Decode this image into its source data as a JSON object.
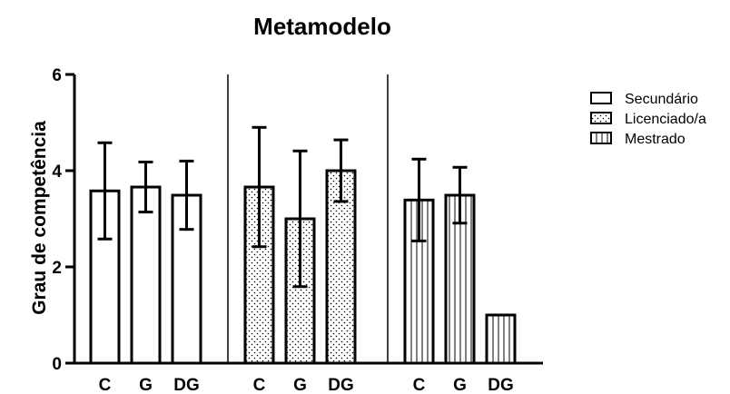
{
  "chart_data": {
    "type": "bar",
    "title": "Metamodelo",
    "ylabel": "Grau de competência",
    "xlabel": "",
    "ylim": [
      0,
      6
    ],
    "yticks": [
      0,
      2,
      4,
      6
    ],
    "categories": [
      "C",
      "G",
      "DG"
    ],
    "legend_position": "right",
    "grid": false,
    "series": [
      {
        "name": "Secundário",
        "pattern": "plain",
        "values": [
          3.58,
          3.66,
          3.49
        ],
        "errors": [
          1.0,
          0.52,
          0.71
        ]
      },
      {
        "name": "Licenciado/a",
        "pattern": "dots",
        "values": [
          3.66,
          3.0,
          4.0
        ],
        "errors": [
          1.24,
          1.41,
          0.64
        ]
      },
      {
        "name": "Mestrado",
        "pattern": "vertical-lines",
        "values": [
          3.39,
          3.49,
          1.0
        ],
        "errors": [
          0.85,
          0.58,
          0
        ]
      }
    ]
  },
  "colors": {
    "bar_fill": "#ffffff",
    "stroke": "#000000"
  }
}
